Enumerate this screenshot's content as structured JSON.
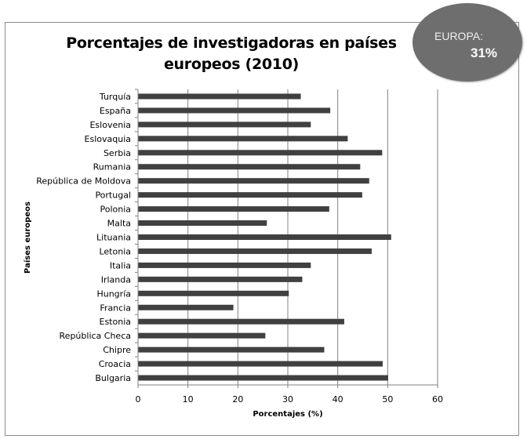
{
  "badge": {
    "label": "EUROPA:",
    "value": "31%"
  },
  "colors": {
    "bar": "#404040",
    "gridline": "#808080",
    "badge": "#6e6e6e"
  },
  "chart_data": {
    "type": "bar",
    "orientation": "horizontal",
    "title": "Porcentajes de investigadoras en países europeos (2010)",
    "title_lines": [
      "Porcentajes de investigadoras en países",
      "europeos (2010)"
    ],
    "xlabel": "Porcentajes (%)",
    "ylabel": "Países europeos",
    "xlim": [
      0,
      60
    ],
    "xticks": [
      0,
      10,
      20,
      30,
      40,
      50,
      60
    ],
    "grid": "vertical",
    "legend": "none",
    "categories": [
      "Turquía",
      "España",
      "Eslovenia",
      "Eslovaquia",
      "Serbia",
      "Rumania",
      "República de Moldova",
      "Portugal",
      "Polonia",
      "Malta",
      "Lituania",
      "Letonia",
      "Italia",
      "Irlanda",
      "Hungría",
      "Francia",
      "Estonia",
      "República Checa",
      "Chipre",
      "Croacia",
      "Bulgaria"
    ],
    "values": [
      32.6,
      38.5,
      34.6,
      42.0,
      48.9,
      44.5,
      46.3,
      44.9,
      38.3,
      25.8,
      50.7,
      46.8,
      34.6,
      32.9,
      30.2,
      19.1,
      41.3,
      25.5,
      37.3,
      49.0,
      50.1
    ]
  }
}
